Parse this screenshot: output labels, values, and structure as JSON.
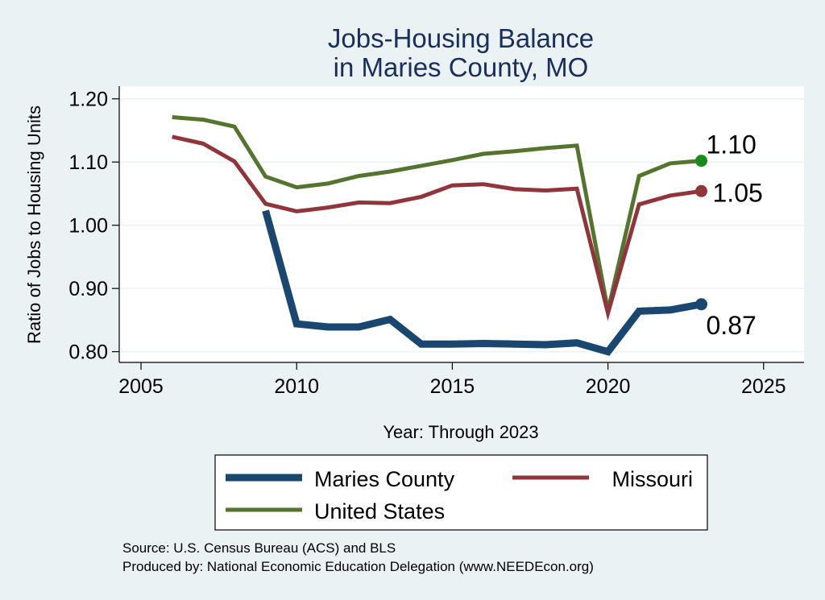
{
  "chart_data": {
    "type": "line",
    "title": "Jobs-Housing Balance",
    "subtitle": "in Maries County, MO",
    "xlabel": "Year: Through 2023",
    "ylabel": "Ratio of Jobs to Housing Units",
    "xlim": [
      2004.3,
      2026.3
    ],
    "ylim": [
      0.783,
      1.22
    ],
    "x_ticks": [
      2005,
      2010,
      2015,
      2020,
      2025
    ],
    "y_ticks": [
      0.8,
      0.9,
      1.0,
      1.1,
      1.2
    ],
    "y_tick_labels": [
      "0.80",
      "0.90",
      "1.00",
      "1.10",
      "1.20"
    ],
    "grid": "horizontal",
    "legend_position": "bottom",
    "series": [
      {
        "name": "Maries County",
        "color": "#1a476f",
        "x": [
          2009,
          2010,
          2011,
          2012,
          2013,
          2014,
          2015,
          2016,
          2017,
          2018,
          2019,
          2020,
          2021,
          2022,
          2023
        ],
        "y": [
          1.023,
          0.844,
          0.839,
          0.839,
          0.851,
          0.812,
          0.812,
          0.813,
          0.812,
          0.811,
          0.814,
          0.8,
          0.864,
          0.866,
          0.875
        ],
        "end_label": "0.87"
      },
      {
        "name": "Missouri",
        "color": "#90353b",
        "x": [
          2006,
          2007,
          2008,
          2009,
          2010,
          2011,
          2012,
          2013,
          2014,
          2015,
          2016,
          2017,
          2018,
          2019,
          2020,
          2021,
          2022,
          2023
        ],
        "y": [
          1.14,
          1.129,
          1.101,
          1.034,
          1.022,
          1.028,
          1.036,
          1.035,
          1.045,
          1.063,
          1.065,
          1.057,
          1.055,
          1.058,
          0.861,
          1.033,
          1.047,
          1.054
        ],
        "end_label": "1.05"
      },
      {
        "name": "United States",
        "color": "#55752f",
        "x": [
          2006,
          2007,
          2008,
          2009,
          2010,
          2011,
          2012,
          2013,
          2014,
          2015,
          2016,
          2017,
          2018,
          2019,
          2020,
          2021,
          2022,
          2023
        ],
        "y": [
          1.171,
          1.167,
          1.156,
          1.077,
          1.06,
          1.066,
          1.078,
          1.085,
          1.094,
          1.103,
          1.113,
          1.117,
          1.122,
          1.126,
          0.865,
          1.078,
          1.098,
          1.102
        ],
        "end_label": "1.10"
      }
    ],
    "end_marker_colors": [
      "#1a476f",
      "#90353b",
      "#1a8a1a"
    ]
  },
  "notes": {
    "source": "Source: U.S. Census Bureau (ACS) and BLS",
    "produced_by": "Produced by: National Economic Education Delegation (www.NEEDEcon.org)"
  }
}
